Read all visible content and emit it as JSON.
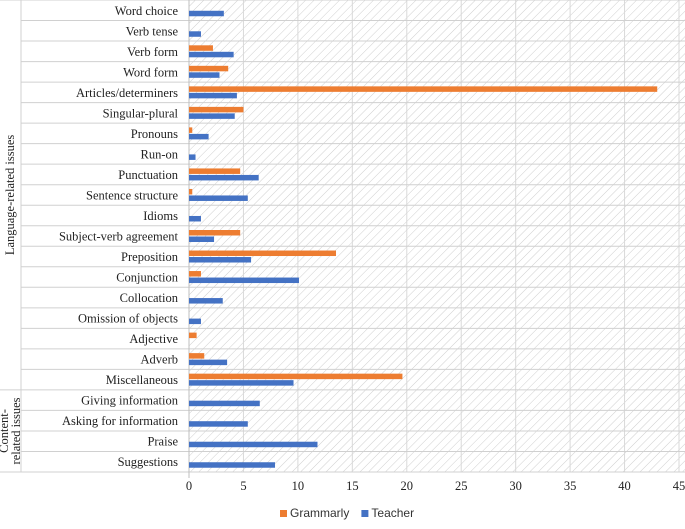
{
  "chart_data": {
    "type": "bar",
    "orientation": "horizontal",
    "categories": [
      "Word choice",
      "Verb tense",
      "Verb form",
      "Word form",
      "Articles/determiners",
      "Singular-plural",
      "Pronouns",
      "Run-on",
      "Punctuation",
      "Sentence structure",
      "Idioms",
      "Subject-verb agreement",
      "Preposition",
      "Conjunction",
      "Collocation",
      "Omission of objects",
      "Adjective",
      "Adverb",
      "Miscellaneous",
      "Giving information",
      "Asking for information",
      "Praise",
      "Suggestions"
    ],
    "series": [
      {
        "name": "Grammarly",
        "color": "#ED7D31",
        "values": [
          0,
          0,
          2.2,
          3.6,
          43,
          5,
          0.3,
          0,
          4.7,
          0.3,
          0,
          4.7,
          13.5,
          1.1,
          0,
          0,
          0.7,
          1.4,
          19.6,
          0,
          0,
          0,
          0
        ]
      },
      {
        "name": "Teacher",
        "color": "#4472C4",
        "values": [
          3.2,
          1.1,
          4.1,
          2.8,
          4.4,
          4.2,
          1.8,
          0.6,
          6.4,
          5.4,
          1.1,
          2.3,
          5.7,
          10.1,
          3.1,
          1.1,
          0,
          3.5,
          9.6,
          6.5,
          5.4,
          11.8,
          7.9
        ]
      }
    ],
    "groups": [
      {
        "label": "Language-related issues",
        "from": 0,
        "to": 18
      },
      {
        "label": "Content-related issues",
        "from": 19,
        "to": 22
      }
    ],
    "xlim": [
      0,
      45
    ],
    "xticks": [
      0,
      5,
      10,
      15,
      20,
      25,
      30,
      35,
      40,
      45
    ],
    "legend_position": "bottom",
    "background_pattern": "diagonal-hatch"
  }
}
